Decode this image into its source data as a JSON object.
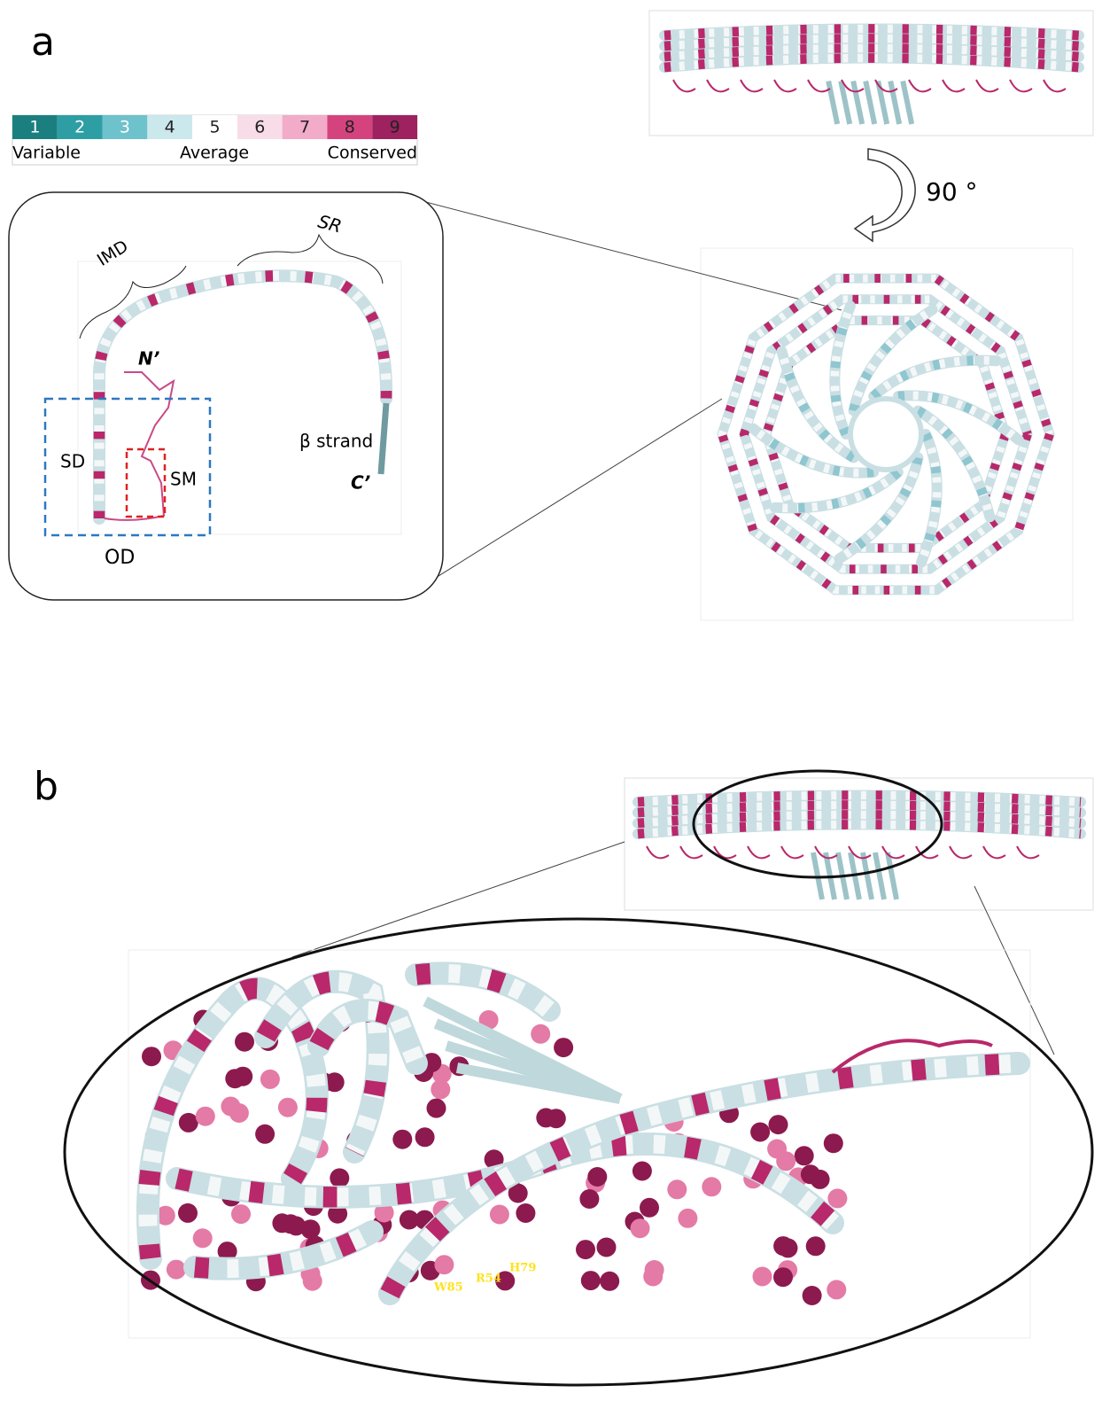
{
  "panel_a": {
    "label": "a",
    "scale": {
      "cells": [
        {
          "value": 1,
          "color": "#1b7f80"
        },
        {
          "value": 2,
          "color": "#2e9ea5"
        },
        {
          "value": 3,
          "color": "#6dc2cc"
        },
        {
          "value": 4,
          "color": "#cbe8ec"
        },
        {
          "value": 5,
          "color": "#ffffff"
        },
        {
          "value": 6,
          "color": "#f8dde9"
        },
        {
          "value": 7,
          "color": "#f2abc9"
        },
        {
          "value": 8,
          "color": "#d5437f"
        },
        {
          "value": 9,
          "color": "#9e2160"
        }
      ],
      "left": "Variable",
      "middle": "Average",
      "right": "Conserved"
    },
    "rotation": "90 °",
    "inset": {
      "imd": "IMD",
      "sr": "SR",
      "n_term": "N’",
      "sd": "SD",
      "sm": "SM",
      "beta": "β strand",
      "c_term": "C’",
      "od": "OD"
    }
  },
  "panel_b": {
    "label": "b",
    "residues": [
      "W85",
      "R54",
      "H79"
    ]
  }
}
